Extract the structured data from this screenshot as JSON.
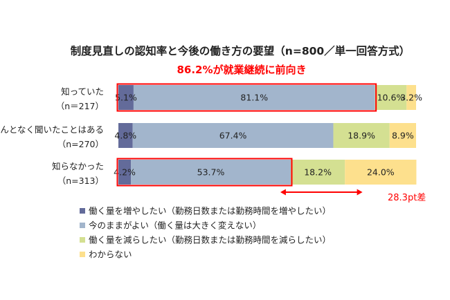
{
  "chart_data": {
    "type": "bar",
    "orientation": "horizontal",
    "stacked": true,
    "percent": true,
    "title": "制度見直しの認知率と今後の働き方の要望（n=800／単一回答方式）",
    "subtitle": "86.2%が就業継続に前向き",
    "categories": [
      [
        "知っていた",
        "（n＝217）"
      ],
      [
        "なんとなく聞いたことはある",
        "（n=270）"
      ],
      [
        "知らなかった",
        "（n=313）"
      ]
    ],
    "series": [
      {
        "name": "働く量を増やしたい（勤務日数または勤務時間を増やしたい）",
        "color": "#636b9a",
        "values": [
          5.1,
          4.8,
          4.2
        ],
        "labels": [
          "5.1%",
          "4.8%",
          "4.2%"
        ]
      },
      {
        "name": "今のままがよい（働く量は大きく変えない）",
        "color": "#a2b5cc",
        "values": [
          81.1,
          67.4,
          53.7
        ],
        "labels": [
          "81.1%",
          "67.4%",
          "53.7%"
        ]
      },
      {
        "name": "働く量を減らしたい（勤務日数または勤務時間を減らしたい）",
        "color": "#d4e092",
        "values": [
          10.6,
          18.9,
          18.2
        ],
        "labels": [
          "10.6%",
          "18.9%",
          "18.2%"
        ]
      },
      {
        "name": "わからない",
        "color": "#fde08d",
        "values": [
          3.2,
          8.9,
          24.0
        ],
        "labels": [
          "3.2%",
          "8.9%",
          "24.0%"
        ]
      }
    ],
    "xlim": [
      0,
      100
    ],
    "grid": false,
    "legend_position": "bottom-left",
    "highlights": [
      {
        "category": 0,
        "series": [
          0,
          1
        ]
      },
      {
        "category": 2,
        "series": [
          0,
          1
        ]
      }
    ],
    "annotation": {
      "text": "28.3pt差",
      "from_category": 2,
      "span": [
        53.7,
        82.0
      ]
    },
    "accent_color": "#ff0000"
  }
}
